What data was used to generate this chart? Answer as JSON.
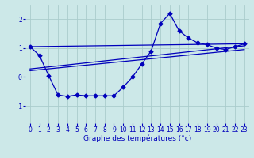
{
  "bg_color": "#cce8e8",
  "line_color": "#0000bb",
  "grid_color": "#aacccc",
  "xlabel": "Graphe des températures (°c)",
  "xlim": [
    -0.5,
    23.5
  ],
  "ylim": [
    -1.6,
    2.5
  ],
  "yticks": [
    -1,
    0,
    1,
    2
  ],
  "xticks": [
    0,
    1,
    2,
    3,
    4,
    5,
    6,
    7,
    8,
    9,
    10,
    11,
    12,
    13,
    14,
    15,
    16,
    17,
    18,
    19,
    20,
    21,
    22,
    23
  ],
  "line_jagged_x": [
    0,
    1,
    2,
    3,
    4,
    5,
    6,
    7,
    8,
    9,
    10,
    11,
    12,
    13,
    14,
    15,
    16,
    17,
    18,
    19,
    20,
    21,
    22,
    23
  ],
  "line_jagged_y": [
    1.05,
    0.75,
    0.05,
    -0.62,
    -0.67,
    -0.62,
    -0.65,
    -0.65,
    -0.65,
    -0.65,
    -0.35,
    0.0,
    0.45,
    0.9,
    1.85,
    2.2,
    1.6,
    1.35,
    1.18,
    1.12,
    1.0,
    0.95,
    1.05,
    1.15
  ],
  "line_trend1_x": [
    0,
    23
  ],
  "line_trend1_y": [
    1.05,
    1.15
  ],
  "line_trend2_x": [
    0,
    23
  ],
  "line_trend2_y": [
    0.28,
    1.08
  ],
  "line_trend3_x": [
    0,
    23
  ],
  "line_trend3_y": [
    0.22,
    0.95
  ]
}
